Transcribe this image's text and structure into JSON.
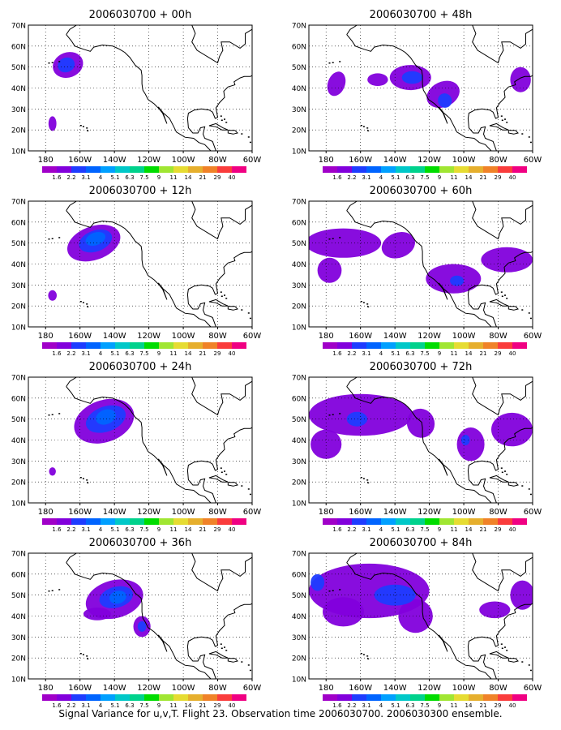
{
  "figure": {
    "caption": "Signal Variance for u,v,T. Flight 23. Observation time 2006030700. 2006030300 ensemble."
  },
  "colorbar": {
    "labels": [
      "1.6",
      "2.2",
      "3.1",
      "4",
      "5.1",
      "6.3",
      "7.5",
      "9",
      "11",
      "14",
      "21",
      "29",
      "40"
    ],
    "colors": [
      "#a000c8",
      "#8200dc",
      "#1e3cff",
      "#0064ff",
      "#00a0ff",
      "#00c8c8",
      "#00d28c",
      "#00dc00",
      "#a0e632",
      "#e6dc32",
      "#e6af2d",
      "#f08228",
      "#fa3c3c",
      "#f00082"
    ]
  },
  "axes": {
    "x_ticks": [
      "180",
      "160W",
      "140W",
      "120W",
      "100W",
      "80W",
      "60W"
    ],
    "y_ticks": [
      "10N",
      "20N",
      "30N",
      "40N",
      "50N",
      "60N",
      "70N"
    ],
    "lon_range": [
      -190,
      -60
    ],
    "lat_range": [
      10,
      70
    ]
  },
  "chart_data": [
    {
      "type": "heatmap",
      "title": "2006030700 + 00h",
      "blobs": [
        {
          "lon": -167,
          "lat": 51,
          "rlon": 9,
          "rlat": 6,
          "rot": -20,
          "level": 1.8
        },
        {
          "lon": -168,
          "lat": 51,
          "rlon": 5,
          "rlat": 3.5,
          "rot": -20,
          "level": 2.6
        },
        {
          "lon": -176,
          "lat": 23,
          "rlon": 2.3,
          "rlat": 3.5,
          "rot": 0,
          "level": 1.8
        }
      ]
    },
    {
      "type": "heatmap",
      "title": "2006030700 + 48h",
      "blobs": [
        {
          "lon": -131,
          "lat": 45,
          "rlon": 12,
          "rlat": 6,
          "rot": 0,
          "level": 1.8
        },
        {
          "lon": -112,
          "lat": 37,
          "rlon": 10,
          "rlat": 6,
          "rot": -25,
          "level": 1.8
        },
        {
          "lon": -150,
          "lat": 44,
          "rlon": 6,
          "rlat": 3,
          "rot": 0,
          "level": 1.8
        },
        {
          "lon": -174,
          "lat": 42,
          "rlon": 5,
          "rlat": 6,
          "rot": 20,
          "level": 1.8
        },
        {
          "lon": -67,
          "lat": 44,
          "rlon": 6,
          "rlat": 6,
          "rot": 0,
          "level": 1.8
        },
        {
          "lon": -130,
          "lat": 45,
          "rlon": 6,
          "rlat": 3,
          "rot": 0,
          "level": 2.6
        },
        {
          "lon": -111,
          "lat": 34,
          "rlon": 4,
          "rlat": 3.5,
          "rot": -25,
          "level": 2.6
        }
      ]
    },
    {
      "type": "heatmap",
      "title": "2006030700 + 12h",
      "blobs": [
        {
          "lon": -152,
          "lat": 50,
          "rlon": 16,
          "rlat": 8,
          "rot": -20,
          "level": 1.8
        },
        {
          "lon": -151,
          "lat": 51,
          "rlon": 10,
          "rlat": 5,
          "rot": -20,
          "level": 2.6
        },
        {
          "lon": -151,
          "lat": 52,
          "rlon": 6,
          "rlat": 3,
          "rot": -20,
          "level": 3.5
        },
        {
          "lon": -176,
          "lat": 25,
          "rlon": 2.5,
          "rlat": 2.5,
          "rot": 0,
          "level": 1.8
        }
      ]
    },
    {
      "type": "heatmap",
      "title": "2006030700 + 60h",
      "blobs": [
        {
          "lon": -170,
          "lat": 50,
          "rlon": 22,
          "rlat": 7,
          "rot": 0,
          "level": 1.8
        },
        {
          "lon": -178,
          "lat": 37,
          "rlon": 7,
          "rlat": 6,
          "rot": 0,
          "level": 1.8
        },
        {
          "lon": -138,
          "lat": 49,
          "rlon": 10,
          "rlat": 6,
          "rot": -20,
          "level": 1.8
        },
        {
          "lon": -106,
          "lat": 33,
          "rlon": 16,
          "rlat": 7,
          "rot": 0,
          "level": 1.8
        },
        {
          "lon": -75,
          "lat": 42,
          "rlon": 15,
          "rlat": 6,
          "rot": 0,
          "level": 1.8
        },
        {
          "lon": -104,
          "lat": 32,
          "rlon": 4,
          "rlat": 2.5,
          "rot": 0,
          "level": 2.6
        }
      ]
    },
    {
      "type": "heatmap",
      "title": "2006030700 + 24h",
      "blobs": [
        {
          "lon": -146,
          "lat": 49,
          "rlon": 18,
          "rlat": 10,
          "rot": -20,
          "level": 1.8
        },
        {
          "lon": -145,
          "lat": 50,
          "rlon": 12,
          "rlat": 6,
          "rot": -20,
          "level": 2.6
        },
        {
          "lon": -145,
          "lat": 51,
          "rlon": 6,
          "rlat": 3.5,
          "rot": -20,
          "level": 3.5
        },
        {
          "lon": -176,
          "lat": 25,
          "rlon": 2,
          "rlat": 2,
          "rot": 0,
          "level": 1.8
        }
      ]
    },
    {
      "type": "heatmap",
      "title": "2006030700 + 72h",
      "blobs": [
        {
          "lon": -160,
          "lat": 52,
          "rlon": 30,
          "rlat": 10,
          "rot": 0,
          "level": 1.8
        },
        {
          "lon": -180,
          "lat": 38,
          "rlon": 9,
          "rlat": 7,
          "rot": 0,
          "level": 1.8
        },
        {
          "lon": -125,
          "lat": 48,
          "rlon": 8,
          "rlat": 7,
          "rot": -20,
          "level": 1.8
        },
        {
          "lon": -96,
          "lat": 38,
          "rlon": 8,
          "rlat": 8,
          "rot": 0,
          "level": 1.8
        },
        {
          "lon": -72,
          "lat": 45,
          "rlon": 12,
          "rlat": 8,
          "rot": 0,
          "level": 1.8
        },
        {
          "lon": -162,
          "lat": 50,
          "rlon": 6,
          "rlat": 3.5,
          "rot": 0,
          "level": 2.6
        },
        {
          "lon": -99,
          "lat": 40,
          "rlon": 2.5,
          "rlat": 2.5,
          "rot": 0,
          "level": 2.6
        }
      ]
    },
    {
      "type": "heatmap",
      "title": "2006030700 + 36h",
      "blobs": [
        {
          "lon": -140,
          "lat": 48,
          "rlon": 17,
          "rlat": 9,
          "rot": -15,
          "level": 1.8
        },
        {
          "lon": -150,
          "lat": 41,
          "rlon": 8,
          "rlat": 3,
          "rot": 0,
          "level": 1.8
        },
        {
          "lon": -124,
          "lat": 35,
          "rlon": 5,
          "rlat": 5,
          "rot": 0,
          "level": 1.8
        },
        {
          "lon": -139,
          "lat": 49,
          "rlon": 10,
          "rlat": 5,
          "rot": -15,
          "level": 2.6
        },
        {
          "lon": -138,
          "lat": 49,
          "rlon": 5,
          "rlat": 3,
          "rot": -15,
          "level": 3.5
        },
        {
          "lon": -124,
          "lat": 35,
          "rlon": 2.5,
          "rlat": 2.5,
          "rot": 0,
          "level": 2.6
        }
      ]
    },
    {
      "type": "heatmap",
      "title": "2006030700 + 84h",
      "blobs": [
        {
          "lon": -155,
          "lat": 52,
          "rlon": 35,
          "rlat": 13,
          "rot": 0,
          "level": 1.8
        },
        {
          "lon": -170,
          "lat": 42,
          "rlon": 12,
          "rlat": 7,
          "rot": 0,
          "level": 1.8
        },
        {
          "lon": -128,
          "lat": 40,
          "rlon": 10,
          "rlat": 8,
          "rot": 0,
          "level": 1.8
        },
        {
          "lon": -82,
          "lat": 43,
          "rlon": 9,
          "rlat": 4,
          "rot": 0,
          "level": 1.8
        },
        {
          "lon": -66,
          "lat": 50,
          "rlon": 7,
          "rlat": 7,
          "rot": 0,
          "level": 1.8
        },
        {
          "lon": -140,
          "lat": 50,
          "rlon": 12,
          "rlat": 5,
          "rot": 0,
          "level": 2.6
        },
        {
          "lon": -185,
          "lat": 56,
          "rlon": 4,
          "rlat": 4,
          "rot": 0,
          "level": 2.6
        }
      ]
    }
  ]
}
